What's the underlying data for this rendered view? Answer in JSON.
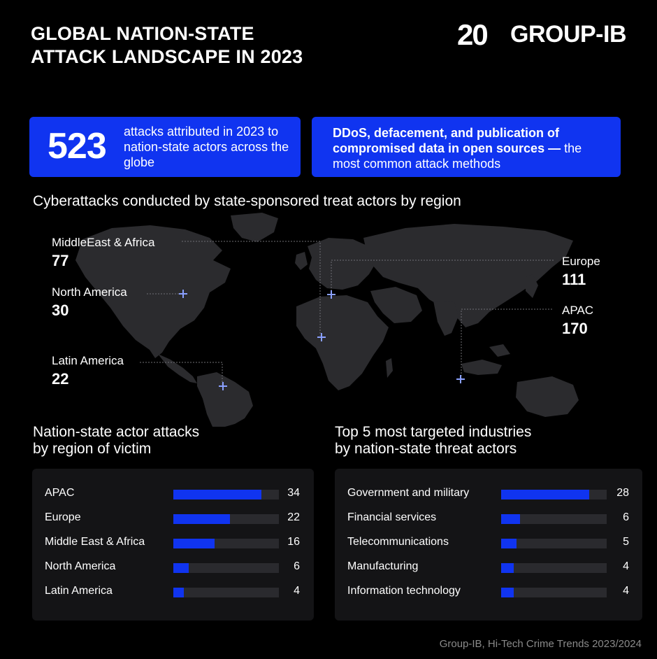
{
  "header": {
    "title_line1": "GLOBAL NATION-STATE",
    "title_line2": "ATTACK LANDSCAPE IN 2023",
    "logo_number": "20",
    "logo_text": "GROUP-IB"
  },
  "highlights": {
    "count": "523",
    "count_text": "attacks attributed in 2023 to nation-state actors across the globe",
    "methods_bold": "DDoS, defacement, and publication of compromised data in open sources —",
    "methods_text": "the most common attack methods"
  },
  "map": {
    "title": "Cyberattacks conducted by state-sponsored treat actors by region",
    "regions": [
      {
        "name": "MiddleEast & Africa",
        "value": "77"
      },
      {
        "name": "North America",
        "value": "30"
      },
      {
        "name": "Latin America",
        "value": "22"
      },
      {
        "name": "Europe",
        "value": "111"
      },
      {
        "name": "APAC",
        "value": "170"
      }
    ]
  },
  "chart_data": [
    {
      "type": "bar",
      "title": "Nation-state actor attacks by region of victim",
      "title_line1": "Nation-state actor attacks",
      "title_line2": "by region of victim",
      "categories": [
        "APAC",
        "Europe",
        "Middle East & Africa",
        "North America",
        "Latin America"
      ],
      "values": [
        34,
        22,
        16,
        6,
        4
      ],
      "orientation": "horizontal",
      "color": "#1034f0"
    },
    {
      "type": "bar",
      "title": "Top 5 most targeted industries by nation-state threat actors",
      "title_line1": "Top 5 most targeted industries",
      "title_line2": "by nation-state threat actors",
      "categories": [
        "Government and military",
        "Financial services",
        "Telecommunications",
        "Manufacturing",
        "Information technology"
      ],
      "values": [
        28,
        6,
        5,
        4,
        4
      ],
      "orientation": "horizontal",
      "color": "#1034f0"
    }
  ],
  "footer": {
    "source": "Group-IB, Hi-Tech Crime Trends 2023/2024"
  },
  "colors": {
    "accent": "#1034f0",
    "marker": "#8aa0ff",
    "background": "#000000",
    "panel": "#141416"
  }
}
